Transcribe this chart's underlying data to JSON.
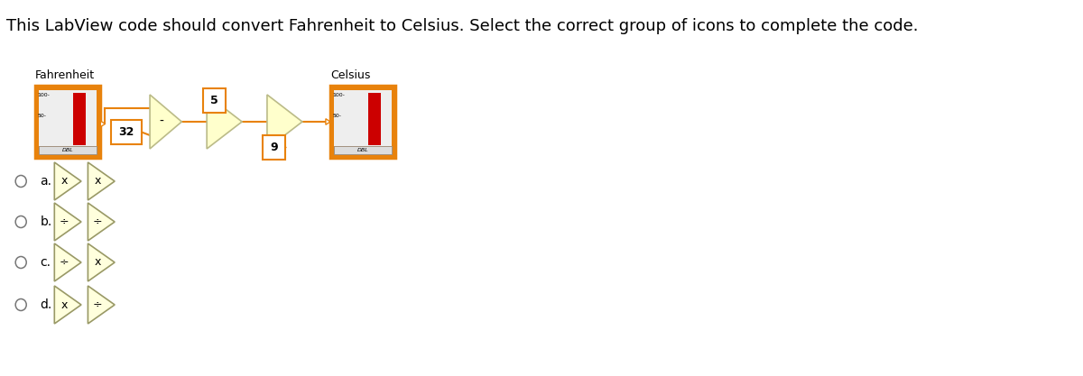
{
  "title": "This LabView code should convert Fahrenheit to Celsius. Select the correct group of icons to complete the code.",
  "title_fontsize": 13,
  "bg_color": "#ffffff",
  "orange_border": "#E8820C",
  "orange_fill": "#F5A623",
  "yellow_fill": "#FFFFCC",
  "yellow_border": "#CCCC99",
  "label_fahrenheit": "Fahrenheit",
  "label_celsius": "Celsius",
  "label_dbl": "DBL",
  "node_32": "32",
  "node_5": "5",
  "node_9": "9",
  "minus_symbol": "-",
  "options": [
    "a.",
    "b.",
    "c.",
    "d."
  ],
  "option_symbols": [
    [
      "x",
      "x"
    ],
    [
      "÷",
      "÷"
    ],
    [
      "÷",
      "x"
    ],
    [
      "x",
      "÷"
    ]
  ]
}
